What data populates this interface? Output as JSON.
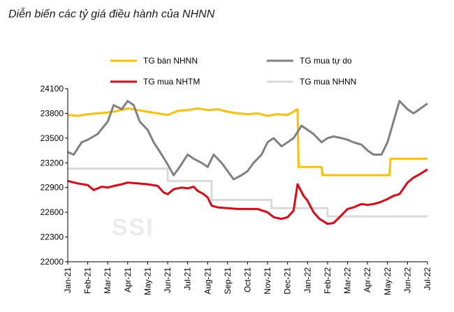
{
  "chart_data": {
    "type": "line",
    "title": "Diễn biến các tỷ giá điều hành của NHNN",
    "watermark": "SSI",
    "xlabel": "",
    "ylabel": "",
    "ylim": [
      22000,
      24100
    ],
    "yticks": [
      22000,
      22300,
      22600,
      22900,
      23200,
      23500,
      23800,
      24100
    ],
    "x_tick_labels": [
      "Jan-21",
      "Feb-21",
      "Mar-21",
      "Apr-21",
      "May-21",
      "Jun-21",
      "Jul-21",
      "Aug-21",
      "Sep-21",
      "Oct-21",
      "Nov-21",
      "Dec-21",
      "Jan-22",
      "Feb-22",
      "Mar-22",
      "Apr-22",
      "May-22",
      "Jun-22",
      "Jul-22"
    ],
    "series": [
      {
        "name": "TG bán NHNN",
        "color": "#ffc000",
        "points": [
          [
            0,
            23780
          ],
          [
            0.5,
            23770
          ],
          [
            1,
            23790
          ],
          [
            1.5,
            23800
          ],
          [
            2,
            23810
          ],
          [
            2.5,
            23830
          ],
          [
            3,
            23860
          ],
          [
            3.5,
            23840
          ],
          [
            4,
            23820
          ],
          [
            4.5,
            23800
          ],
          [
            5,
            23780
          ],
          [
            5.5,
            23830
          ],
          [
            6,
            23840
          ],
          [
            6.5,
            23860
          ],
          [
            7,
            23840
          ],
          [
            7.5,
            23850
          ],
          [
            8,
            23820
          ],
          [
            8.5,
            23800
          ],
          [
            9,
            23790
          ],
          [
            9.5,
            23800
          ],
          [
            10,
            23770
          ],
          [
            10.5,
            23790
          ],
          [
            11,
            23780
          ],
          [
            11.5,
            23850
          ],
          [
            11.55,
            23150
          ],
          [
            12,
            23150
          ],
          [
            12.7,
            23150
          ],
          [
            12.75,
            23050
          ],
          [
            13,
            23050
          ],
          [
            14,
            23050
          ],
          [
            15,
            23050
          ],
          [
            16,
            23050
          ],
          [
            16.1,
            23050
          ],
          [
            16.15,
            23250
          ],
          [
            17,
            23250
          ],
          [
            18,
            23250
          ]
        ]
      },
      {
        "name": "TG mua tự do",
        "color": "#808080",
        "points": [
          [
            0,
            23330
          ],
          [
            0.3,
            23300
          ],
          [
            0.7,
            23450
          ],
          [
            1,
            23480
          ],
          [
            1.5,
            23550
          ],
          [
            2,
            23700
          ],
          [
            2.3,
            23900
          ],
          [
            2.7,
            23850
          ],
          [
            3,
            23950
          ],
          [
            3.3,
            23900
          ],
          [
            3.6,
            23700
          ],
          [
            4,
            23600
          ],
          [
            4.3,
            23450
          ],
          [
            4.7,
            23300
          ],
          [
            5,
            23180
          ],
          [
            5.3,
            23050
          ],
          [
            5.6,
            23150
          ],
          [
            6,
            23300
          ],
          [
            6.3,
            23250
          ],
          [
            6.7,
            23200
          ],
          [
            7,
            23150
          ],
          [
            7.3,
            23300
          ],
          [
            7.7,
            23200
          ],
          [
            8,
            23100
          ],
          [
            8.3,
            23000
          ],
          [
            8.7,
            23050
          ],
          [
            9,
            23100
          ],
          [
            9.3,
            23200
          ],
          [
            9.7,
            23300
          ],
          [
            10,
            23450
          ],
          [
            10.3,
            23500
          ],
          [
            10.7,
            23400
          ],
          [
            11,
            23450
          ],
          [
            11.3,
            23500
          ],
          [
            11.7,
            23650
          ],
          [
            12,
            23600
          ],
          [
            12.3,
            23550
          ],
          [
            12.7,
            23450
          ],
          [
            13,
            23500
          ],
          [
            13.3,
            23520
          ],
          [
            13.7,
            23500
          ],
          [
            14,
            23480
          ],
          [
            14.3,
            23450
          ],
          [
            14.7,
            23420
          ],
          [
            15,
            23350
          ],
          [
            15.3,
            23300
          ],
          [
            15.7,
            23300
          ],
          [
            16,
            23450
          ],
          [
            16.3,
            23700
          ],
          [
            16.6,
            23950
          ],
          [
            17,
            23850
          ],
          [
            17.3,
            23800
          ],
          [
            17.6,
            23850
          ],
          [
            18,
            23920
          ]
        ]
      },
      {
        "name": "TG mua NHTM",
        "color": "#e30613",
        "points": [
          [
            0,
            22980
          ],
          [
            0.5,
            22950
          ],
          [
            1,
            22930
          ],
          [
            1.3,
            22870
          ],
          [
            1.7,
            22910
          ],
          [
            2,
            22900
          ],
          [
            2.3,
            22920
          ],
          [
            2.7,
            22940
          ],
          [
            3,
            22960
          ],
          [
            3.5,
            22950
          ],
          [
            4,
            22940
          ],
          [
            4.5,
            22920
          ],
          [
            4.8,
            22840
          ],
          [
            5,
            22820
          ],
          [
            5.3,
            22880
          ],
          [
            5.7,
            22900
          ],
          [
            6,
            22890
          ],
          [
            6.3,
            22910
          ],
          [
            6.5,
            22860
          ],
          [
            6.8,
            22820
          ],
          [
            7,
            22780
          ],
          [
            7.2,
            22680
          ],
          [
            7.5,
            22660
          ],
          [
            8,
            22650
          ],
          [
            8.5,
            22640
          ],
          [
            9,
            22640
          ],
          [
            9.5,
            22640
          ],
          [
            10,
            22600
          ],
          [
            10.3,
            22540
          ],
          [
            10.7,
            22520
          ],
          [
            11,
            22540
          ],
          [
            11.3,
            22620
          ],
          [
            11.5,
            22940
          ],
          [
            11.8,
            22800
          ],
          [
            12,
            22740
          ],
          [
            12.3,
            22600
          ],
          [
            12.6,
            22520
          ],
          [
            13,
            22460
          ],
          [
            13.3,
            22470
          ],
          [
            13.6,
            22540
          ],
          [
            14,
            22640
          ],
          [
            14.3,
            22660
          ],
          [
            14.7,
            22700
          ],
          [
            15,
            22690
          ],
          [
            15.3,
            22700
          ],
          [
            15.6,
            22720
          ],
          [
            16,
            22760
          ],
          [
            16.3,
            22800
          ],
          [
            16.6,
            22820
          ],
          [
            17,
            22960
          ],
          [
            17.3,
            23020
          ],
          [
            17.6,
            23060
          ],
          [
            18,
            23120
          ]
        ]
      },
      {
        "name": "TG mua NHNN",
        "color": "#d9d9d9",
        "points": [
          [
            0,
            23130
          ],
          [
            5,
            23130
          ],
          [
            5,
            22980
          ],
          [
            7.2,
            22980
          ],
          [
            7.2,
            22750
          ],
          [
            10.2,
            22750
          ],
          [
            10.2,
            22650
          ],
          [
            13,
            22650
          ],
          [
            13,
            22550
          ],
          [
            18,
            22550
          ]
        ]
      }
    ]
  }
}
